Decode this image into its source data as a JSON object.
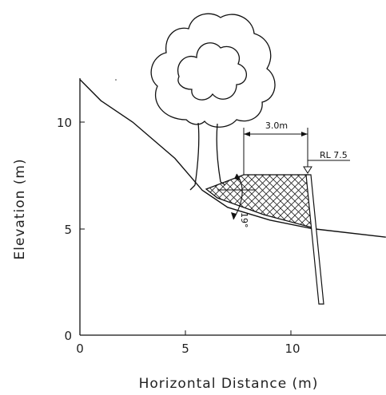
{
  "chart_data": {
    "type": "diagram",
    "xlabel": "Horizontal Distance (m)",
    "ylabel": "Elevation (m)",
    "xlim": [
      0,
      14.5
    ],
    "ylim": [
      0,
      12.5
    ],
    "x_ticks": [
      "0",
      "5",
      "10"
    ],
    "y_ticks": [
      "0",
      "5",
      "10"
    ],
    "ground_profile": [
      [
        0,
        12
      ],
      [
        1,
        11
      ],
      [
        2.5,
        10
      ],
      [
        4.5,
        8.3
      ],
      [
        5.8,
        6.8
      ],
      [
        7,
        6.0
      ],
      [
        9,
        5.4
      ],
      [
        11,
        5.0
      ],
      [
        14.5,
        4.6
      ]
    ],
    "annotations": {
      "width_label": "3.0m",
      "rl_label": "RL 7.5",
      "angle_label": "19°"
    }
  }
}
